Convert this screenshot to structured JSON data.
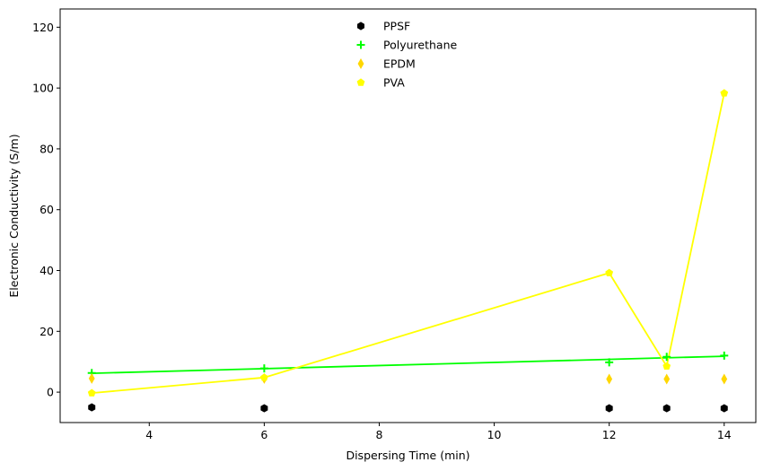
{
  "chart_data": {
    "type": "scatter",
    "title": "",
    "xlabel": "Dispersing Time (min)",
    "ylabel": "Electronic Conductivity (S/m)",
    "xlim": [
      2.45,
      14.55
    ],
    "ylim": [
      -10,
      126
    ],
    "xticks": [
      4,
      6,
      8,
      10,
      12,
      14
    ],
    "yticks": [
      0,
      20,
      40,
      60,
      80,
      100,
      120
    ],
    "grid": false,
    "legend": "top-center",
    "series": [
      {
        "name": "PPSF",
        "marker": "hexagon",
        "color": "#000000",
        "x": [
          3,
          6,
          12,
          13,
          14
        ],
        "y": [
          -5,
          -5.3,
          -5.3,
          -5.3,
          -5.3
        ],
        "fit": null
      },
      {
        "name": "Polyurethane",
        "marker": "plus",
        "color": "#00ff00",
        "x": [
          3,
          6,
          12,
          13,
          14
        ],
        "y": [
          6.3,
          7.8,
          9.8,
          11.6,
          12.0
        ],
        "fit": {
          "x": [
            3,
            14
          ],
          "y": [
            6.2,
            11.8
          ]
        }
      },
      {
        "name": "EPDM",
        "marker": "thin_diamond",
        "color": "#ffd700",
        "x": [
          3,
          6,
          12,
          13,
          14
        ],
        "y": [
          4.5,
          4.5,
          4.3,
          4.3,
          4.3
        ],
        "fit": null
      },
      {
        "name": "PVA",
        "marker": "pentagon",
        "color": "#ffff00",
        "x": [
          3,
          6,
          12,
          13,
          14
        ],
        "y": [
          -0.3,
          4.8,
          39.2,
          8.5,
          98.3
        ],
        "fit": {
          "x": [
            3,
            6,
            12,
            13,
            14
          ],
          "y": [
            -0.3,
            4.8,
            39.2,
            8.5,
            98.3
          ]
        }
      }
    ]
  }
}
